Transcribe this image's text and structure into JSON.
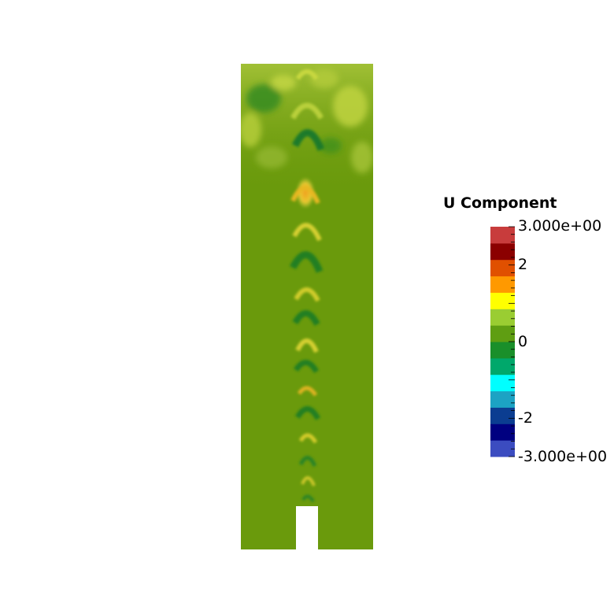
{
  "legend": {
    "title": "U Component",
    "max_label": "3.000e+00",
    "min_label": "-3.000e+00",
    "tick_labels": [
      "2",
      "0",
      "-2"
    ],
    "range": [
      -3,
      3
    ],
    "colors": [
      "#3b4cc0",
      "#000080",
      "#0b3d91",
      "#1ca3c4",
      "#00ffff",
      "#00a86b",
      "#1a8f2a",
      "#5f9e12",
      "#9acd32",
      "#ffff00",
      "#ff9900",
      "#e05000",
      "#8b0000",
      "#c83c3c"
    ]
  },
  "colors": {
    "background": "#ffffff",
    "field_base": "#6a9a0c",
    "dark_band": "#2e7d1f",
    "light_band": "#c2d43a",
    "warm_band": "#e7a91b"
  }
}
